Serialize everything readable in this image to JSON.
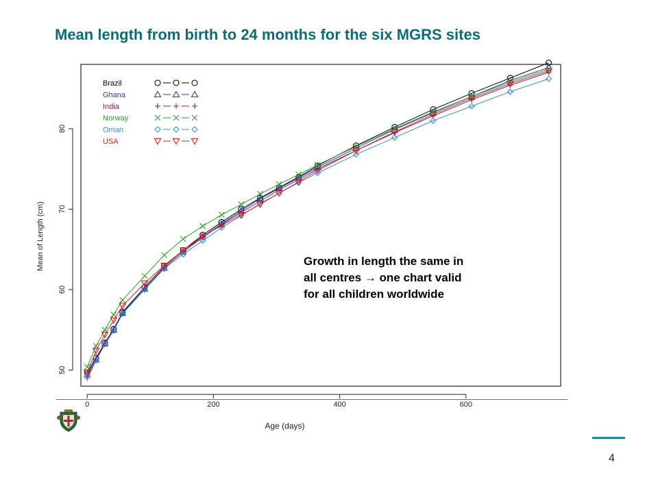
{
  "slide": {
    "title": "Mean length from birth to 24 months for the six MGRS sites",
    "page_number": "4"
  },
  "chart_data": {
    "type": "line",
    "title": "",
    "xlabel": "Age (days)",
    "ylabel": "Mean of Length (cm)",
    "xlim": [
      -10,
      750
    ],
    "ylim": [
      48,
      88
    ],
    "xticks": [
      0,
      200,
      400,
      600
    ],
    "yticks": [
      50,
      60,
      70,
      80
    ],
    "legend_position": "top-left",
    "annotation": "Growth in length the same in all centres → one chart valid for all children worldwide",
    "x": [
      0,
      14,
      28,
      42,
      56,
      91,
      122,
      152,
      183,
      213,
      244,
      274,
      304,
      335,
      365,
      426,
      487,
      548,
      609,
      670,
      731
    ],
    "series": [
      {
        "name": "Brazil",
        "marker": "circle",
        "color": "#000000",
        "values": [
          49.7,
          51.5,
          53.4,
          55.1,
          57.2,
          60.3,
          62.9,
          64.9,
          66.8,
          68.4,
          70.0,
          71.4,
          72.7,
          74.0,
          75.4,
          77.9,
          80.2,
          82.4,
          84.4,
          86.3,
          88.2
        ]
      },
      {
        "name": "Ghana",
        "marker": "triangle-up",
        "color": "#1f3fbf",
        "values": [
          49.5,
          51.3,
          53.3,
          55.0,
          57.1,
          60.1,
          62.7,
          64.7,
          66.6,
          68.2,
          69.8,
          71.3,
          72.6,
          73.9,
          75.2,
          77.6,
          79.9,
          82.0,
          84.0,
          86.0,
          87.6
        ]
      },
      {
        "name": "India",
        "marker": "plus",
        "color": "#8b1a5a",
        "values": [
          49.0,
          51.2,
          53.3,
          55.0,
          57.0,
          60.1,
          62.7,
          64.7,
          66.5,
          68.1,
          69.6,
          71.0,
          72.4,
          73.7,
          75.0,
          77.3,
          79.5,
          81.6,
          83.6,
          85.4,
          87.0
        ]
      },
      {
        "name": "Norway",
        "marker": "cross",
        "color": "#2e9a2e",
        "values": [
          50.4,
          53.0,
          55.0,
          56.9,
          58.7,
          61.7,
          64.3,
          66.3,
          67.9,
          69.3,
          70.6,
          71.9,
          73.1,
          74.3,
          75.5,
          77.8,
          80.0,
          82.1,
          84.0,
          85.8,
          87.4
        ]
      },
      {
        "name": "Oman",
        "marker": "diamond",
        "color": "#3a8fd0",
        "values": [
          49.3,
          51.2,
          53.2,
          54.9,
          57.0,
          60.0,
          62.6,
          64.4,
          66.1,
          67.7,
          69.2,
          70.7,
          72.0,
          73.3,
          74.5,
          76.8,
          78.9,
          81.0,
          82.8,
          84.6,
          86.2
        ]
      },
      {
        "name": "USA",
        "marker": "triangle-down",
        "color": "#d11f1f",
        "values": [
          49.7,
          52.4,
          54.4,
          56.2,
          58.0,
          60.8,
          63.0,
          64.9,
          66.6,
          68.0,
          69.3,
          70.6,
          72.0,
          73.4,
          74.8,
          77.3,
          79.6,
          81.8,
          83.8,
          85.6,
          87.2
        ]
      }
    ]
  }
}
